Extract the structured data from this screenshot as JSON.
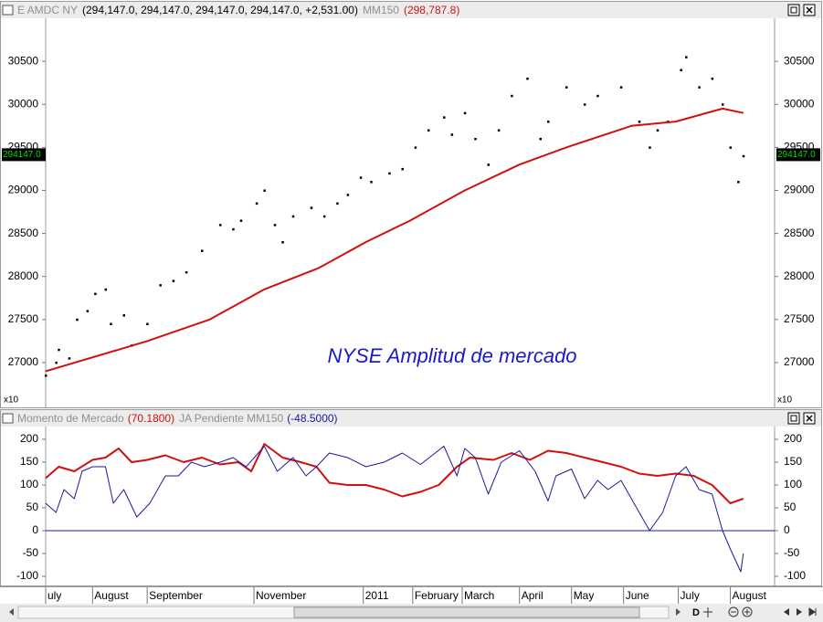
{
  "chart_data": [
    {
      "type": "scatter",
      "annotation": "NYSE Amplitud de mercado",
      "scale_note": "x10",
      "last_tag": {
        "value": 29414.7,
        "label": "294147.0"
      },
      "xlim": [
        0,
        280
      ],
      "ylim": [
        26490,
        31000
      ],
      "yticks": [
        27000,
        27500,
        28000,
        28500,
        29000,
        29500,
        30000,
        30500
      ],
      "series": [
        {
          "name": "E AMDC NY",
          "legend_values": "(294,147.0, 294,147.0, 294,147.0, 294,147.0, +2,531.00)",
          "color": "#000000",
          "mark": "dot",
          "x": [
            0,
            4,
            5,
            9,
            12,
            16,
            19,
            23,
            25,
            30,
            33,
            39,
            44,
            49,
            54,
            60,
            67,
            72,
            75,
            81,
            84,
            88,
            91,
            95,
            102,
            107,
            112,
            116,
            121,
            125,
            132,
            137,
            142,
            147,
            153,
            156,
            161,
            165,
            170,
            174,
            179,
            185,
            190,
            193,
            200,
            207,
            212,
            221,
            228,
            232,
            235,
            239,
            244,
            246,
            251,
            256,
            260,
            263,
            266,
            268
          ],
          "values": [
            26850,
            27000,
            27150,
            27050,
            27500,
            27600,
            27800,
            27850,
            27450,
            27550,
            27200,
            27450,
            27900,
            27950,
            28050,
            28300,
            28600,
            28550,
            28650,
            28850,
            29000,
            28600,
            28400,
            28700,
            28800,
            28700,
            28850,
            28950,
            29150,
            29100,
            29200,
            29250,
            29500,
            29700,
            29850,
            29650,
            29900,
            29600,
            29300,
            29700,
            30100,
            30300,
            29600,
            29800,
            30200,
            30000,
            30100,
            30200,
            29800,
            29500,
            29700,
            29800,
            30400,
            30550,
            30200,
            30300,
            30000,
            29500,
            29100,
            29400
          ]
        },
        {
          "name": "MM150",
          "legend_values": "(298,787.8)",
          "color": "#d01010",
          "mark": "line",
          "x": [
            0,
            28,
            39,
            63,
            84,
            105,
            123,
            140,
            161,
            182,
            200,
            225,
            242,
            260,
            268
          ],
          "values": [
            26900,
            27150,
            27250,
            27500,
            27850,
            28100,
            28400,
            28650,
            29000,
            29300,
            29500,
            29750,
            29800,
            29950,
            29900
          ]
        }
      ]
    },
    {
      "type": "line",
      "xlim": [
        0,
        280
      ],
      "ylim": [
        -118,
        228
      ],
      "yticks": [
        -100,
        -50,
        0,
        50,
        100,
        150,
        200
      ],
      "hline": {
        "value": 0,
        "color": "#1a1aa0"
      },
      "xticks": [
        {
          "value": 0,
          "label": "uly"
        },
        {
          "value": 18,
          "label": "August"
        },
        {
          "value": 39,
          "label": "September"
        },
        {
          "value": 80,
          "label": "November"
        },
        {
          "value": 122,
          "label": "2011"
        },
        {
          "value": 141,
          "label": "February"
        },
        {
          "value": 160,
          "label": "March"
        },
        {
          "value": 182,
          "label": "April"
        },
        {
          "value": 202,
          "label": "May"
        },
        {
          "value": 222,
          "label": "June"
        },
        {
          "value": 243,
          "label": "July"
        },
        {
          "value": 263,
          "label": "August"
        }
      ],
      "series": [
        {
          "name": "Momento de Mercado",
          "legend_values": "(70.1800)",
          "color": "#d01010",
          "width": 2,
          "x": [
            0,
            5,
            11,
            18,
            23,
            28,
            33,
            39,
            46,
            53,
            60,
            67,
            74,
            79,
            84,
            91,
            98,
            104,
            109,
            116,
            123,
            130,
            137,
            144,
            151,
            158,
            163,
            172,
            179,
            186,
            193,
            200,
            207,
            214,
            221,
            228,
            235,
            242,
            249,
            256,
            263,
            268
          ],
          "values": [
            115,
            140,
            130,
            155,
            160,
            180,
            150,
            155,
            165,
            150,
            160,
            145,
            150,
            130,
            190,
            160,
            150,
            140,
            105,
            100,
            100,
            90,
            75,
            85,
            100,
            140,
            160,
            155,
            170,
            155,
            175,
            170,
            160,
            150,
            140,
            125,
            120,
            125,
            120,
            100,
            60,
            70
          ]
        },
        {
          "name": "JA Pendiente MM150",
          "legend_values": "(-48.5000)",
          "color": "#1a1aa0",
          "width": 1,
          "x": [
            0,
            4,
            7,
            11,
            14,
            18,
            23,
            26,
            30,
            35,
            40,
            46,
            51,
            56,
            61,
            67,
            72,
            77,
            84,
            89,
            95,
            100,
            104,
            109,
            116,
            123,
            130,
            137,
            144,
            153,
            158,
            161,
            165,
            170,
            175,
            182,
            188,
            193,
            196,
            202,
            207,
            212,
            216,
            221,
            226,
            232,
            237,
            242,
            246,
            251,
            256,
            260,
            263,
            267,
            268
          ],
          "values": [
            60,
            40,
            90,
            70,
            130,
            140,
            140,
            60,
            90,
            30,
            60,
            120,
            120,
            150,
            140,
            150,
            160,
            140,
            185,
            130,
            160,
            120,
            140,
            170,
            160,
            140,
            150,
            170,
            145,
            185,
            120,
            180,
            160,
            80,
            150,
            175,
            130,
            65,
            120,
            135,
            70,
            110,
            90,
            110,
            60,
            0,
            40,
            120,
            140,
            90,
            80,
            0,
            -40,
            -90,
            -50
          ]
        }
      ]
    }
  ],
  "toolbar": {
    "label": "D"
  }
}
